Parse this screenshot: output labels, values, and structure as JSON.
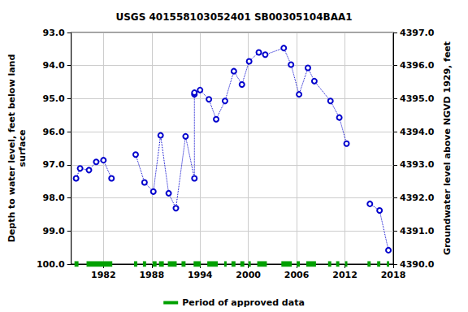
{
  "chart_data": {
    "type": "line",
    "title": "USGS 401558103052401 SB00305104BAA1",
    "ylabel": "Depth to water level, feet below land\nsurface",
    "y2label": "Groundwater level above NGVD 1929, feet",
    "grid": true,
    "xlim": [
      1978,
      2018
    ],
    "xticks": [
      1982,
      1988,
      1994,
      2000,
      2006,
      2012,
      2018
    ],
    "ylim": [
      100,
      93
    ],
    "yticks": [
      {
        "value": 93,
        "label": "93.0"
      },
      {
        "value": 94,
        "label": "94.0"
      },
      {
        "value": 95,
        "label": "95.0"
      },
      {
        "value": 96,
        "label": "96.0"
      },
      {
        "value": 97,
        "label": "97.0"
      },
      {
        "value": 98,
        "label": "98.0"
      },
      {
        "value": 99,
        "label": "99.0"
      },
      {
        "value": 100,
        "label": "100.0"
      }
    ],
    "y2lim": [
      4390,
      4397
    ],
    "y2ticks": [
      {
        "value": 4390,
        "label": "4390.0"
      },
      {
        "value": 4391,
        "label": "4391.0"
      },
      {
        "value": 4392,
        "label": "4392.0"
      },
      {
        "value": 4393,
        "label": "4393.0"
      },
      {
        "value": 4394,
        "label": "4394.0"
      },
      {
        "value": 4395,
        "label": "4395.0"
      },
      {
        "value": 4396,
        "label": "4396.0"
      },
      {
        "value": 4397,
        "label": "4397.0"
      }
    ],
    "series": [
      {
        "color": "#0000cc",
        "marker": "circle",
        "line_style": "dotted",
        "x": [
          1978.6,
          1979.1,
          1980.2,
          1981.1,
          1982.0,
          1983.0,
          null,
          1986.0,
          1987.1,
          1988.2,
          1989.1,
          1990.1,
          1991.0,
          1992.2,
          1993.3,
          1993.3,
          1993.3,
          1994.0,
          1995.1,
          1996.0,
          1997.1,
          1998.2,
          1999.2,
          2000.1,
          2001.3,
          2002.1,
          2004.4,
          2005.3,
          2006.3,
          2007.4,
          2008.2,
          2010.2,
          2011.3,
          2012.2,
          null,
          2015.1,
          2016.3,
          2017.4
        ],
        "values": [
          97.41,
          97.11,
          97.16,
          96.91,
          96.86,
          97.41,
          null,
          96.69,
          97.53,
          97.81,
          96.11,
          97.86,
          98.31,
          96.14,
          97.41,
          94.87,
          94.82,
          94.74,
          95.02,
          95.62,
          95.07,
          94.17,
          94.57,
          93.87,
          93.6,
          93.67,
          93.47,
          93.97,
          94.87,
          94.07,
          94.47,
          95.07,
          95.57,
          96.36,
          null,
          98.18,
          98.38,
          99.58
        ]
      }
    ],
    "approved_periods": {
      "name": "Period of approved data",
      "color": "#00a000",
      "ranges": [
        [
          1978.4,
          1978.9
        ],
        [
          1979.9,
          1983.1
        ],
        [
          1985.8,
          1986.2
        ],
        [
          1986.9,
          1987.3
        ],
        [
          1988.1,
          1988.6
        ],
        [
          1988.9,
          1989.5
        ],
        [
          1990.0,
          1991.1
        ],
        [
          1991.7,
          1992.2
        ],
        [
          1993.2,
          1994.1
        ],
        [
          1994.9,
          1996.2
        ],
        [
          1997.0,
          1997.3
        ],
        [
          1997.9,
          1998.4
        ],
        [
          1999.0,
          1999.5
        ],
        [
          2000.0,
          2000.3
        ],
        [
          2001.1,
          2002.3
        ],
        [
          2004.1,
          2005.4
        ],
        [
          2006.0,
          2006.4
        ],
        [
          2007.2,
          2008.4
        ],
        [
          2009.9,
          2010.3
        ],
        [
          2010.9,
          2011.3
        ],
        [
          2012.0,
          2012.3
        ],
        [
          2014.8,
          2015.2
        ],
        [
          2016.0,
          2016.4
        ],
        [
          2017.2,
          2017.5
        ]
      ]
    },
    "legend": "bottom"
  }
}
